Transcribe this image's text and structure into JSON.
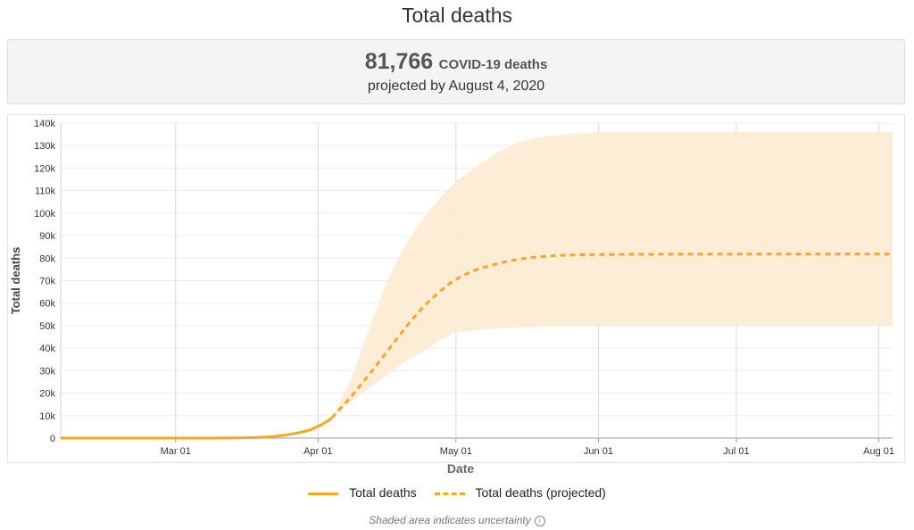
{
  "page": {
    "title": "Total deaths"
  },
  "summary": {
    "number": "81,766",
    "label": "COVID-19 deaths",
    "subtitle": "projected by August 4, 2020"
  },
  "legend": {
    "actual": "Total deaths",
    "projected": "Total deaths (projected)"
  },
  "footnote": "Shaded area indicates uncertainty",
  "colors": {
    "line": "#f5a623",
    "band": "#fdebd3",
    "grid": "#d8d8d8"
  },
  "chart_data": {
    "type": "line",
    "xlabel": "Date",
    "ylabel": "Total deaths",
    "xlim": [
      "2020-02-05",
      "2020-08-04"
    ],
    "ylim": [
      0,
      140000
    ],
    "grid": true,
    "legend_position": "bottom",
    "x_ticks": [
      "Mar 01",
      "Apr 01",
      "May 01",
      "Jun 01",
      "Jul 01",
      "Aug 01"
    ],
    "x_tick_dates": [
      "2020-03-01",
      "2020-04-01",
      "2020-05-01",
      "2020-06-01",
      "2020-07-01",
      "2020-08-01"
    ],
    "y_ticks": [
      0,
      10000,
      20000,
      30000,
      40000,
      50000,
      60000,
      70000,
      80000,
      90000,
      100000,
      110000,
      120000,
      130000,
      140000
    ],
    "y_tick_labels": [
      "0",
      "10k",
      "20k",
      "30k",
      "40k",
      "50k",
      "60k",
      "70k",
      "80k",
      "90k",
      "100k",
      "110k",
      "120k",
      "130k",
      "140k"
    ],
    "series": [
      {
        "name": "Total deaths",
        "style": "solid",
        "x": [
          "2020-02-05",
          "2020-02-15",
          "2020-02-25",
          "2020-03-05",
          "2020-03-10",
          "2020-03-15",
          "2020-03-18",
          "2020-03-21",
          "2020-03-24",
          "2020-03-26",
          "2020-03-28",
          "2020-03-30",
          "2020-04-01",
          "2020-04-03",
          "2020-04-04"
        ],
        "values": [
          0,
          0,
          0,
          0,
          20,
          100,
          250,
          500,
          1100,
          1700,
          2500,
          3500,
          5200,
          7500,
          9000
        ]
      },
      {
        "name": "Total deaths (projected)",
        "style": "dashed",
        "x": [
          "2020-04-04",
          "2020-04-08",
          "2020-04-12",
          "2020-04-16",
          "2020-04-20",
          "2020-04-24",
          "2020-04-28",
          "2020-05-01",
          "2020-05-05",
          "2020-05-10",
          "2020-05-15",
          "2020-05-20",
          "2020-05-25",
          "2020-06-01",
          "2020-06-15",
          "2020-07-01",
          "2020-07-15",
          "2020-08-04"
        ],
        "values": [
          9000,
          18000,
          28000,
          38500,
          49000,
          58500,
          66000,
          70500,
          74500,
          77500,
          79600,
          80700,
          81300,
          81600,
          81720,
          81760,
          81766,
          81766
        ]
      }
    ],
    "uncertainty_band": {
      "x": [
        "2020-04-04",
        "2020-04-08",
        "2020-04-12",
        "2020-04-16",
        "2020-04-20",
        "2020-04-24",
        "2020-04-28",
        "2020-05-01",
        "2020-05-05",
        "2020-05-10",
        "2020-05-15",
        "2020-05-20",
        "2020-05-25",
        "2020-06-01",
        "2020-06-15",
        "2020-07-01",
        "2020-08-04"
      ],
      "lower": [
        9000,
        16000,
        22000,
        28000,
        34000,
        39000,
        44000,
        47000,
        48000,
        48800,
        49300,
        49600,
        49800,
        50000,
        50000,
        50000,
        50000
      ],
      "upper": [
        9000,
        25000,
        48000,
        70000,
        86000,
        98000,
        108000,
        114000,
        120000,
        127000,
        132000,
        134000,
        135000,
        136000,
        136000,
        136000,
        136000
      ]
    }
  }
}
